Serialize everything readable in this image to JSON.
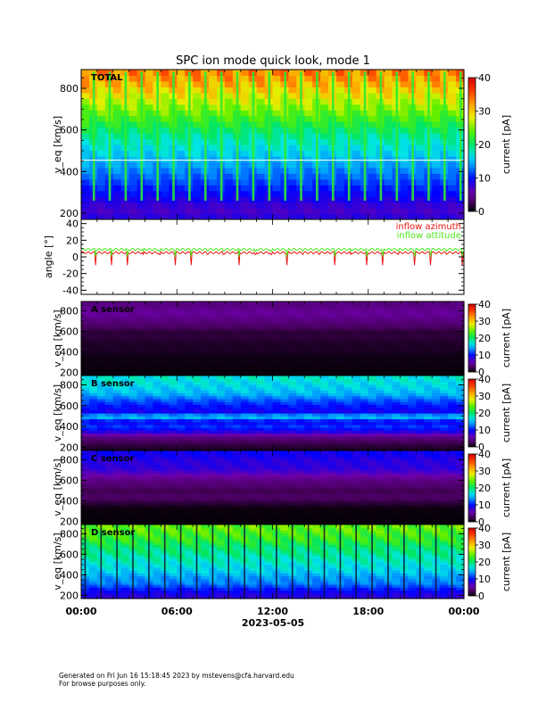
{
  "page": {
    "title": "SPC ion mode quick look, mode 1",
    "footer_line1": "Generated on Fri Jun 16 15:18:45 2023 by mstevens@cfa.harvard.edu",
    "footer_line2": "For browse purposes only."
  },
  "time_axis": {
    "tick_labels": [
      "00:00",
      "06:00",
      "12:00",
      "18:00",
      "00:00"
    ],
    "date_label": "2023-05-05"
  },
  "colors": {
    "azimuth": "#e8140f",
    "attitude": "#4fe81a",
    "spectrogram_colormap": "rainbow (black-purple-blue-cyan-green-yellow-red)"
  },
  "chart_data": [
    {
      "type": "heatmap",
      "panel": "TOTAL",
      "label": "TOTAL",
      "ylabel": "v_eq [km/s]",
      "ylim": [
        170,
        890
      ],
      "yticks": [
        200,
        400,
        600,
        800
      ],
      "x": "time 00:00-24:00 on 2023-05-05",
      "colorbar_label": "current [pA]",
      "colorbar_range": [
        0,
        40
      ],
      "colorbar_ticks": [
        0,
        10,
        20,
        30,
        40
      ],
      "bands": [
        {
          "v": 870,
          "current": 33
        },
        {
          "v": 820,
          "current": 31
        },
        {
          "v": 760,
          "current": 28
        },
        {
          "v": 700,
          "current": 25
        },
        {
          "v": 640,
          "current": 22
        },
        {
          "v": 580,
          "current": 19
        },
        {
          "v": 520,
          "current": 17
        },
        {
          "v": 460,
          "current": 15
        },
        {
          "v": 400,
          "current": 13
        },
        {
          "v": 340,
          "current": 11
        },
        {
          "v": 280,
          "current": 9
        },
        {
          "v": 220,
          "current": 7
        },
        {
          "v": 180,
          "current": 8
        }
      ],
      "periodic_spikes_per_day": 24,
      "spike_current": 22
    },
    {
      "type": "line",
      "panel": "angle",
      "ylabel": "angle [°]",
      "ylim": [
        -45,
        45
      ],
      "yticks": [
        -40,
        -20,
        0,
        20,
        40
      ],
      "series": [
        {
          "name": "inflow azimuth",
          "mean": 5,
          "dip": -10,
          "dips_per_day": 24
        },
        {
          "name": "inflow attitude",
          "mean": 9,
          "dip": 0,
          "dips_per_day": 24
        }
      ]
    },
    {
      "type": "heatmap",
      "panel": "A",
      "label": "A sensor",
      "ylabel": "v_eq [km/s]",
      "ylim": [
        170,
        890
      ],
      "yticks": [
        200,
        400,
        600,
        800
      ],
      "colorbar_label": "current [pA]",
      "colorbar_range": [
        0,
        40
      ],
      "colorbar_ticks": [
        0,
        10,
        20,
        30,
        40
      ],
      "bands": [
        {
          "v": 850,
          "current": 4
        },
        {
          "v": 780,
          "current": 5
        },
        {
          "v": 720,
          "current": 4
        },
        {
          "v": 660,
          "current": 3
        },
        {
          "v": 600,
          "current": 1.5
        },
        {
          "v": 540,
          "current": 1.5
        },
        {
          "v": 480,
          "current": 1
        },
        {
          "v": 420,
          "current": 1
        },
        {
          "v": 360,
          "current": 0.5
        },
        {
          "v": 300,
          "current": 0.5
        },
        {
          "v": 240,
          "current": 0.3
        },
        {
          "v": 190,
          "current": 0.3
        }
      ]
    },
    {
      "type": "heatmap",
      "panel": "B",
      "label": "B sensor",
      "ylabel": "v_eq [km/s]",
      "ylim": [
        170,
        890
      ],
      "yticks": [
        200,
        400,
        600,
        800
      ],
      "colorbar_label": "current [pA]",
      "colorbar_range": [
        0,
        40
      ],
      "colorbar_ticks": [
        0,
        10,
        20,
        30,
        40
      ],
      "bands": [
        {
          "v": 850,
          "current": 17
        },
        {
          "v": 780,
          "current": 16
        },
        {
          "v": 720,
          "current": 15
        },
        {
          "v": 660,
          "current": 12
        },
        {
          "v": 600,
          "current": 10
        },
        {
          "v": 540,
          "current": 9
        },
        {
          "v": 500,
          "current": 16
        },
        {
          "v": 450,
          "current": 9
        },
        {
          "v": 400,
          "current": 11
        },
        {
          "v": 350,
          "current": 8
        },
        {
          "v": 300,
          "current": 4
        },
        {
          "v": 240,
          "current": 2
        },
        {
          "v": 190,
          "current": 1
        }
      ]
    },
    {
      "type": "heatmap",
      "panel": "C",
      "label": "C sensor",
      "ylabel": "v_eq [km/s]",
      "ylim": [
        170,
        890
      ],
      "yticks": [
        200,
        400,
        600,
        800
      ],
      "colorbar_label": "current [pA]",
      "colorbar_range": [
        0,
        40
      ],
      "colorbar_ticks": [
        0,
        10,
        20,
        30,
        40
      ],
      "bands": [
        {
          "v": 850,
          "current": 9
        },
        {
          "v": 780,
          "current": 8
        },
        {
          "v": 720,
          "current": 8
        },
        {
          "v": 660,
          "current": 6
        },
        {
          "v": 600,
          "current": 4
        },
        {
          "v": 540,
          "current": 3
        },
        {
          "v": 500,
          "current": 2
        },
        {
          "v": 450,
          "current": 3
        },
        {
          "v": 400,
          "current": 2
        },
        {
          "v": 340,
          "current": 0.5
        },
        {
          "v": 280,
          "current": 0.3
        },
        {
          "v": 220,
          "current": 0.2
        },
        {
          "v": 190,
          "current": 0.2
        }
      ]
    },
    {
      "type": "heatmap",
      "panel": "D",
      "label": "D sensor",
      "ylabel": "v_eq [km/s]",
      "ylim": [
        170,
        890
      ],
      "yticks": [
        200,
        400,
        600,
        800
      ],
      "colorbar_label": "current [pA]",
      "colorbar_range": [
        0,
        40
      ],
      "colorbar_ticks": [
        0,
        10,
        20,
        30,
        40
      ],
      "bands": [
        {
          "v": 860,
          "current": 24
        },
        {
          "v": 800,
          "current": 23
        },
        {
          "v": 740,
          "current": 22
        },
        {
          "v": 680,
          "current": 20
        },
        {
          "v": 620,
          "current": 19
        },
        {
          "v": 560,
          "current": 18
        },
        {
          "v": 500,
          "current": 17
        },
        {
          "v": 440,
          "current": 16
        },
        {
          "v": 380,
          "current": 14
        },
        {
          "v": 320,
          "current": 13
        },
        {
          "v": 260,
          "current": 10
        },
        {
          "v": 200,
          "current": 8
        }
      ],
      "periodic_dark_stripes_per_day": 24
    }
  ]
}
